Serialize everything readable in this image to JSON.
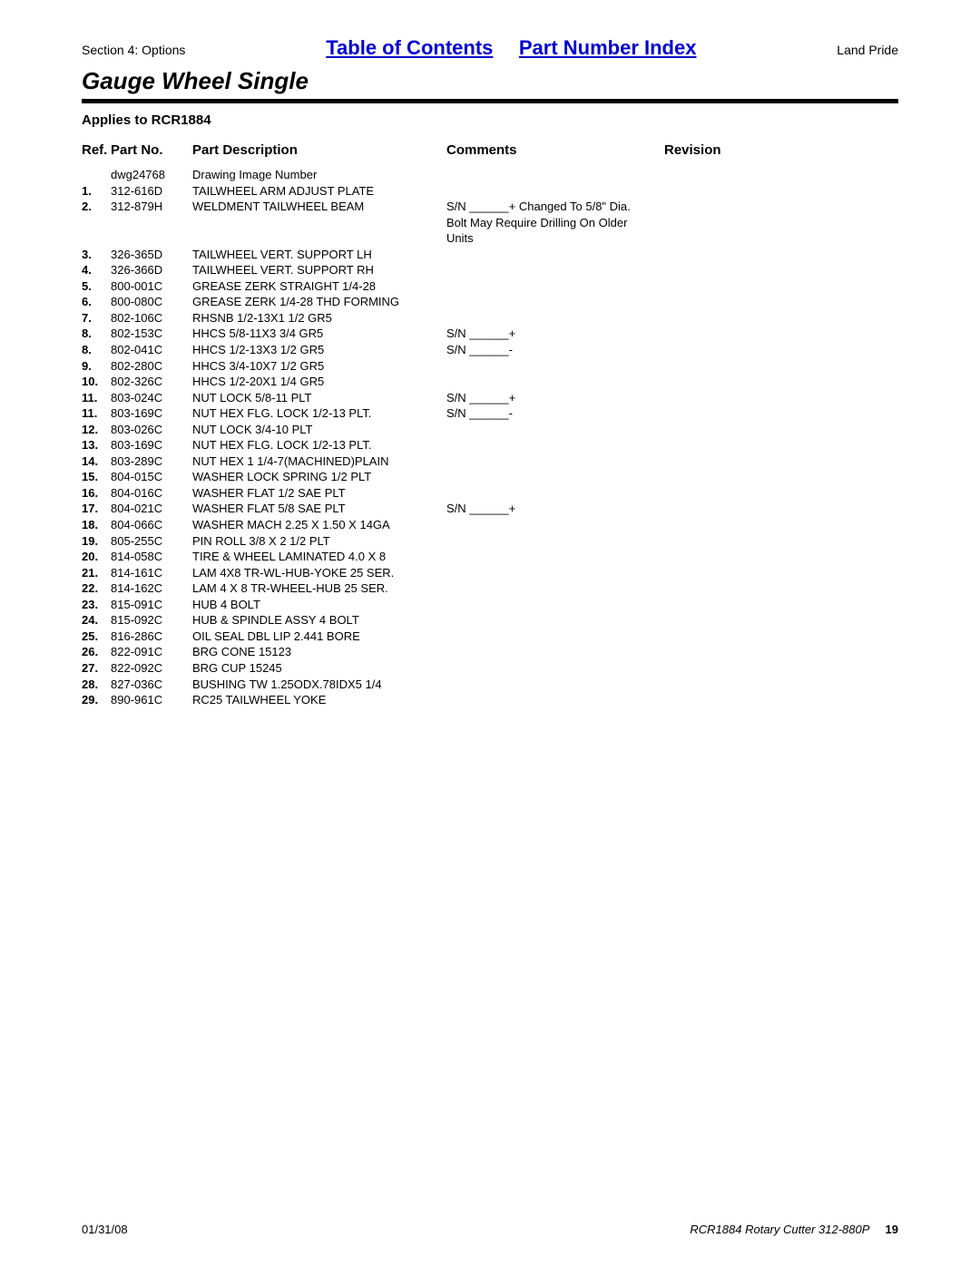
{
  "header": {
    "section_label": "Section 4: Options",
    "toc_link": "Table of Contents",
    "pni_link": "Part Number Index",
    "brand": "Land Pride"
  },
  "title": "Gauge Wheel Single",
  "applies": "Applies to RCR1884",
  "columns": {
    "ref": "Ref.",
    "part": "Part No.",
    "desc": "Part Description",
    "comm": "Comments",
    "rev": "Revision"
  },
  "rows": [
    {
      "ref": "",
      "part": "dwg24768",
      "desc": "Drawing Image Number",
      "comm": "",
      "rev": ""
    },
    {
      "ref": "1.",
      "part": "312-616D",
      "desc": "TAILWHEEL ARM ADJUST PLATE",
      "comm": "",
      "rev": ""
    },
    {
      "ref": "2.",
      "part": "312-879H",
      "desc": "WELDMENT TAILWHEEL BEAM",
      "comm": "S/N ______+ Changed To 5/8\" Dia. Bolt May Require Drilling On Older Units",
      "rev": ""
    },
    {
      "ref": "3.",
      "part": "326-365D",
      "desc": "TAILWHEEL VERT. SUPPORT LH",
      "comm": "",
      "rev": ""
    },
    {
      "ref": "4.",
      "part": "326-366D",
      "desc": "TAILWHEEL VERT. SUPPORT RH",
      "comm": "",
      "rev": ""
    },
    {
      "ref": "5.",
      "part": "800-001C",
      "desc": "GREASE ZERK STRAIGHT 1/4-28",
      "comm": "",
      "rev": ""
    },
    {
      "ref": "6.",
      "part": "800-080C",
      "desc": "GREASE ZERK 1/4-28 THD FORMING",
      "comm": "",
      "rev": ""
    },
    {
      "ref": "7.",
      "part": "802-106C",
      "desc": "RHSNB 1/2-13X1 1/2 GR5",
      "comm": "",
      "rev": ""
    },
    {
      "ref": "8.",
      "part": "802-153C",
      "desc": "HHCS 5/8-11X3 3/4 GR5",
      "comm": "S/N ______+",
      "rev": ""
    },
    {
      "ref": "8.",
      "part": "802-041C",
      "desc": "HHCS 1/2-13X3 1/2 GR5",
      "comm": "S/N ______-",
      "rev": ""
    },
    {
      "ref": "9.",
      "part": "802-280C",
      "desc": "HHCS 3/4-10X7 1/2 GR5",
      "comm": "",
      "rev": ""
    },
    {
      "ref": "10.",
      "part": "802-326C",
      "desc": "HHCS 1/2-20X1 1/4 GR5",
      "comm": "",
      "rev": ""
    },
    {
      "ref": "11.",
      "part": "803-024C",
      "desc": "NUT LOCK 5/8-11 PLT",
      "comm": "S/N ______+",
      "rev": ""
    },
    {
      "ref": "11.",
      "part": "803-169C",
      "desc": "NUT HEX FLG. LOCK 1/2-13 PLT.",
      "comm": "S/N ______-",
      "rev": ""
    },
    {
      "ref": "12.",
      "part": "803-026C",
      "desc": "NUT LOCK 3/4-10 PLT",
      "comm": "",
      "rev": ""
    },
    {
      "ref": "13.",
      "part": "803-169C",
      "desc": "NUT HEX FLG. LOCK 1/2-13 PLT.",
      "comm": "",
      "rev": ""
    },
    {
      "ref": "14.",
      "part": "803-289C",
      "desc": "NUT HEX 1 1/4-7(MACHINED)PLAIN",
      "comm": "",
      "rev": ""
    },
    {
      "ref": "15.",
      "part": "804-015C",
      "desc": "WASHER LOCK SPRING 1/2 PLT",
      "comm": "",
      "rev": ""
    },
    {
      "ref": "16.",
      "part": "804-016C",
      "desc": "WASHER FLAT 1/2 SAE PLT",
      "comm": "",
      "rev": ""
    },
    {
      "ref": "17.",
      "part": "804-021C",
      "desc": "WASHER FLAT 5/8 SAE PLT",
      "comm": "S/N ______+",
      "rev": ""
    },
    {
      "ref": "18.",
      "part": "804-066C",
      "desc": "WASHER MACH 2.25 X 1.50 X 14GA",
      "comm": "",
      "rev": ""
    },
    {
      "ref": "19.",
      "part": "805-255C",
      "desc": "PIN ROLL 3/8 X 2 1/2 PLT",
      "comm": "",
      "rev": ""
    },
    {
      "ref": "20.",
      "part": "814-058C",
      "desc": "TIRE & WHEEL LAMINATED 4.0 X 8",
      "comm": "",
      "rev": ""
    },
    {
      "ref": "21.",
      "part": "814-161C",
      "desc": "LAM 4X8 TR-WL-HUB-YOKE 25 SER.",
      "comm": "",
      "rev": ""
    },
    {
      "ref": "22.",
      "part": "814-162C",
      "desc": "LAM 4 X 8 TR-WHEEL-HUB 25 SER.",
      "comm": "",
      "rev": ""
    },
    {
      "ref": "23.",
      "part": "815-091C",
      "desc": "HUB 4 BOLT",
      "comm": "",
      "rev": ""
    },
    {
      "ref": "24.",
      "part": "815-092C",
      "desc": "HUB & SPINDLE ASSY 4 BOLT",
      "comm": "",
      "rev": ""
    },
    {
      "ref": "25.",
      "part": "816-286C",
      "desc": "OIL SEAL DBL LIP 2.441 BORE",
      "comm": "",
      "rev": ""
    },
    {
      "ref": "26.",
      "part": "822-091C",
      "desc": "BRG CONE 15123",
      "comm": "",
      "rev": ""
    },
    {
      "ref": "27.",
      "part": "822-092C",
      "desc": "BRG CUP 15245",
      "comm": "",
      "rev": ""
    },
    {
      "ref": "28.",
      "part": "827-036C",
      "desc": "BUSHING TW 1.25ODX.78IDX5 1/4",
      "comm": "",
      "rev": ""
    },
    {
      "ref": "29.",
      "part": "890-961C",
      "desc": "RC25 TAILWHEEL YOKE",
      "comm": "",
      "rev": ""
    }
  ],
  "footer": {
    "date": "01/31/08",
    "doc": "RCR1884 Rotary Cutter 312-880P",
    "page": "19"
  }
}
